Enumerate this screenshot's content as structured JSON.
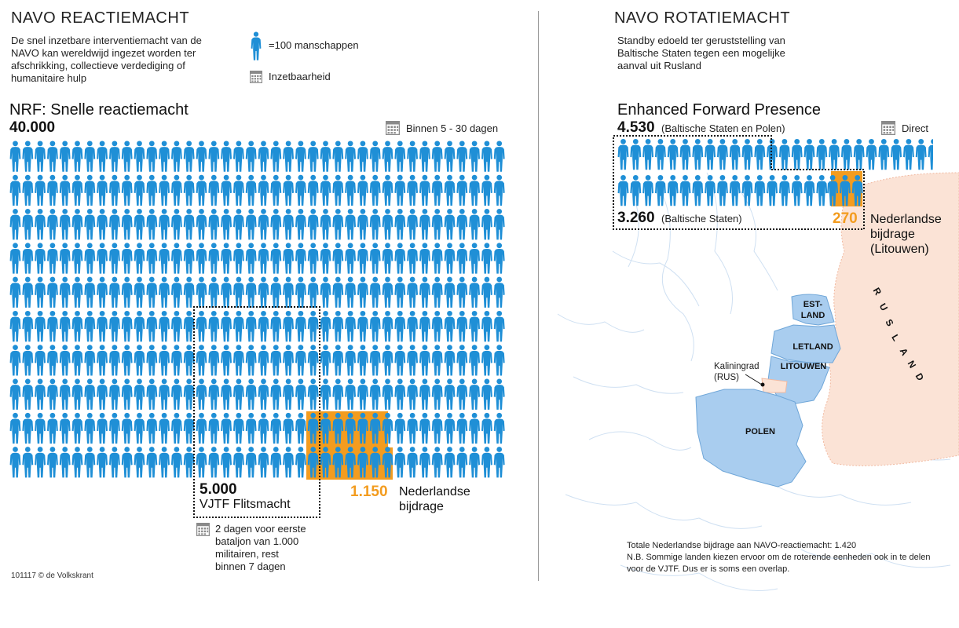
{
  "colors": {
    "soldier": "#1f8fd6",
    "dutch": "#f39c1f",
    "map_land": "#a9cdef",
    "russia": "#fbe3d6"
  },
  "left": {
    "heading": "NAVO REACTIEMACHT",
    "intro": [
      "De snel inzetbare interventiemacht van de",
      "NAVO kan wereldwijd ingezet worden ter",
      "afschrikking, collectieve verdediging of",
      "humanitaire hulp"
    ],
    "legend_soldier": "=100 manschappen",
    "legend_calendar": "Inzetbaarheid",
    "nrf_title": "NRF: Snelle reactiemacht",
    "nrf_total": "40.000",
    "nrf_time": "Binnen 5 - 30 dagen",
    "vjtf_total": "5.000",
    "vjtf_name": "VJTF Flitsmacht",
    "vjtf_time": [
      "2 dagen voor eerste",
      "bataljon van 1.000",
      "militairen, rest",
      "binnen 7 dagen"
    ],
    "dutch_total": "1.150",
    "dutch_label": [
      "Nederlandse",
      "bijdrage"
    ],
    "credit": "101117 © de Volkskrant",
    "grid": {
      "rows": 10,
      "cols": 40,
      "unit": 100
    }
  },
  "right": {
    "heading": "NAVO ROTATIEMACHT",
    "intro": [
      "Standby edoeld ter geruststelling van",
      "Baltische Staten tegen een mogelijke",
      "aanval uit Rusland"
    ],
    "efp_title": "Enhanced Forward Presence",
    "efp_total": "4.530",
    "efp_note": "(Baltische Staten en Polen)",
    "efp_time": "Direct",
    "baltic_total": "3.260",
    "baltic_note": "(Baltische Staten)",
    "dutch_total": "270",
    "dutch_label": [
      "Nederlandse",
      "bijdrage",
      "(Litouwen)"
    ],
    "map": {
      "estland": [
        "EST-",
        "LAND"
      ],
      "letland": "LETLAND",
      "litouwen": "LITOUWEN",
      "polen": "POLEN",
      "kaliningrad": [
        "Kaliningrad",
        "(RUS)"
      ],
      "rusland": "RUSLAND"
    },
    "footnote": [
      "Totale Nederlandse bijdrage aan NAVO-reactiemacht: 1.420",
      "N.B. Sommige landen kiezen ervoor om de roterende eenheden ook in te delen",
      "voor de VJTF. Dus er is soms een overlap."
    ]
  }
}
